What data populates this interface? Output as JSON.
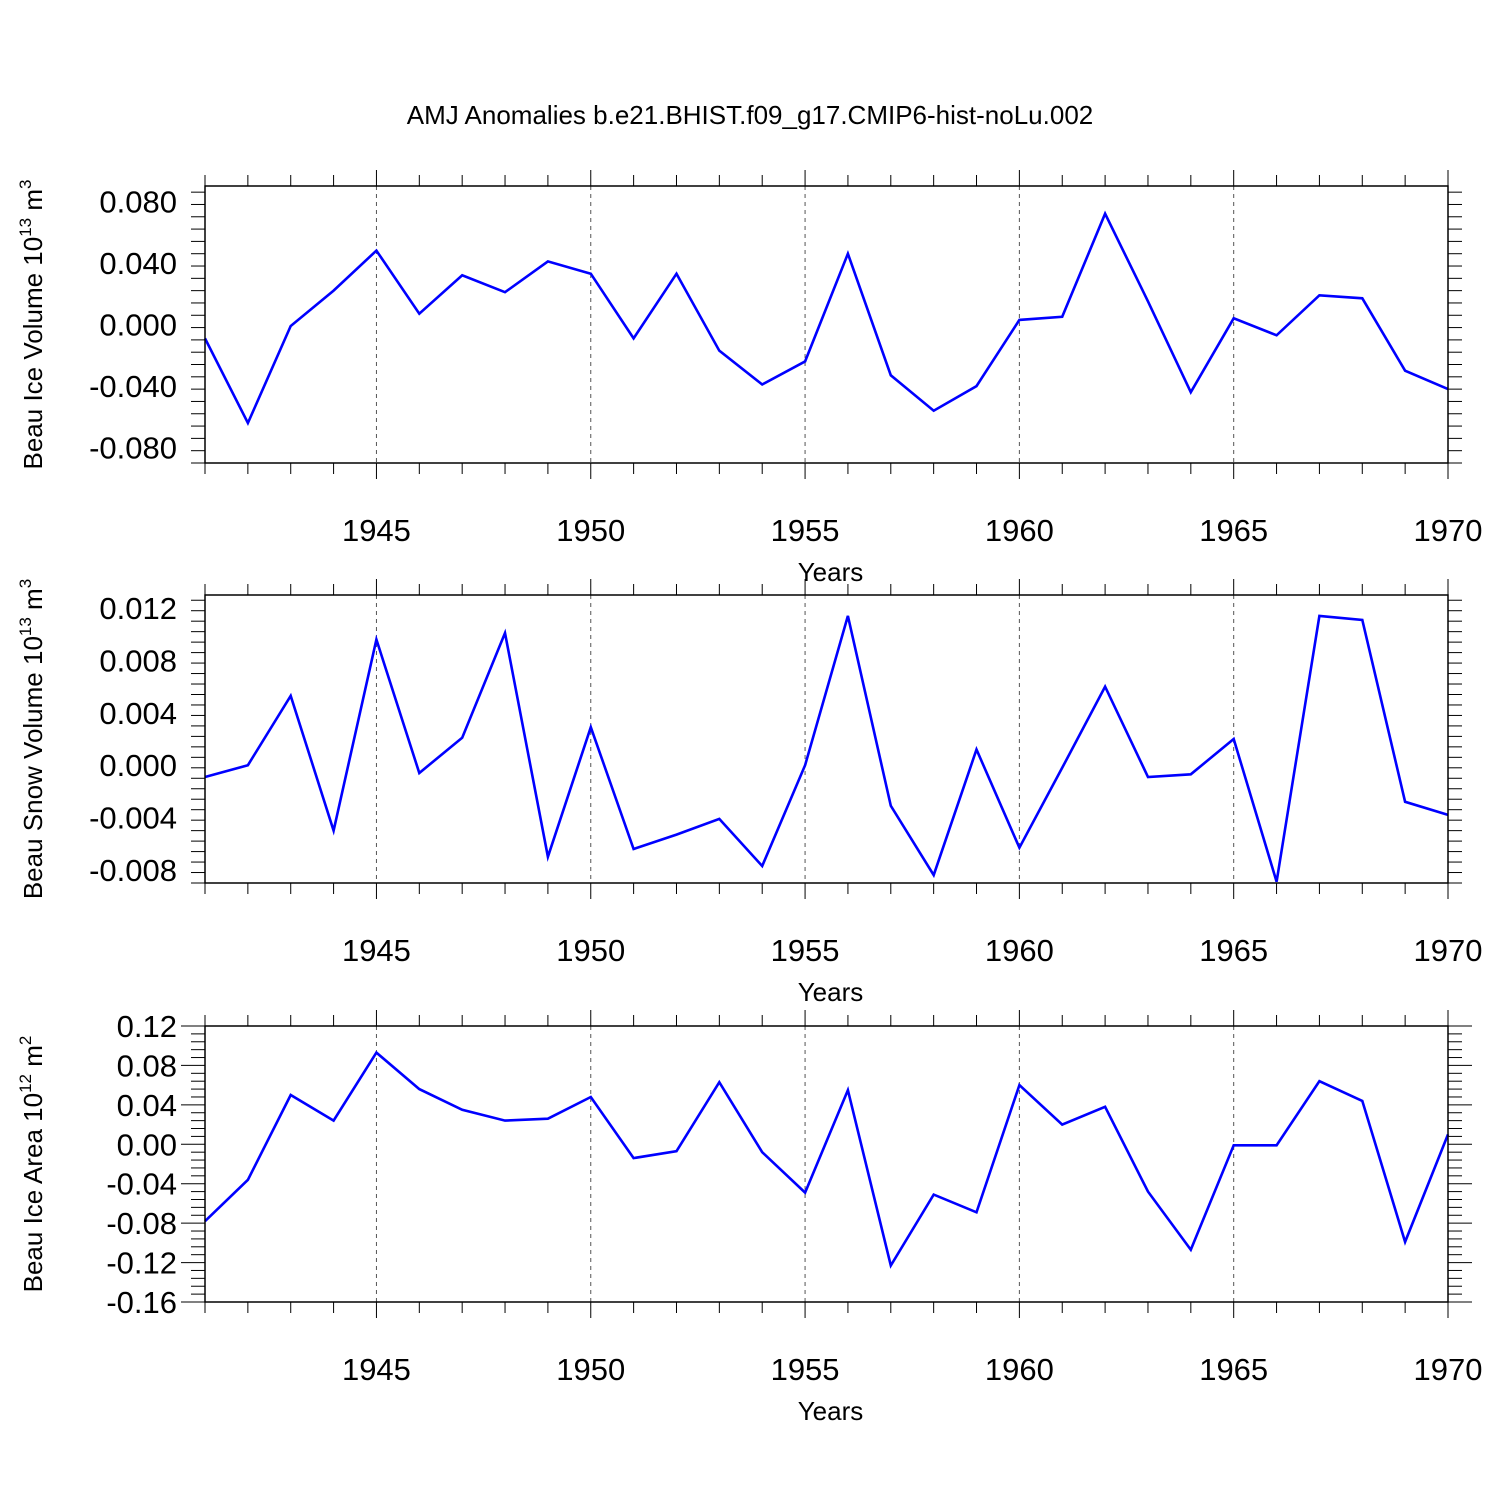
{
  "title": "AMJ Anomalies b.e21.BHIST.f09_g17.CMIP6-hist-noLu.002",
  "chart_data": [
    {
      "type": "line",
      "ylabel_main": "Beau Ice Volume 10",
      "ylabel_sup": "13",
      "ylabel_unit": " m",
      "ylabel_unit_sup": "3",
      "xlabel": "Years",
      "xlim": [
        1941,
        1970
      ],
      "ylim": [
        -0.09,
        0.09
      ],
      "yticks": [
        -0.08,
        -0.04,
        0.0,
        0.04,
        0.08
      ],
      "ytick_labels": [
        "-0.080",
        "-0.040",
        "0.000",
        "0.040",
        "0.080"
      ],
      "xticks": [
        1945,
        1950,
        1955,
        1960,
        1965,
        1970
      ],
      "xtick_labels": [
        "1945",
        "1950",
        "1955",
        "1960",
        "1965",
        "1970"
      ],
      "color": "#0000ff",
      "x": [
        1941,
        1942,
        1943,
        1944,
        1945,
        1946,
        1947,
        1948,
        1949,
        1950,
        1951,
        1952,
        1953,
        1954,
        1955,
        1956,
        1957,
        1958,
        1959,
        1960,
        1961,
        1962,
        1963,
        1964,
        1965,
        1966,
        1967,
        1968,
        1969,
        1970
      ],
      "values": [
        -0.009,
        -0.064,
        -0.001,
        0.022,
        0.048,
        0.007,
        0.032,
        0.021,
        0.041,
        0.033,
        -0.009,
        0.033,
        -0.017,
        -0.039,
        -0.024,
        0.046,
        -0.033,
        -0.056,
        -0.04,
        0.003,
        0.005,
        0.072,
        0.015,
        -0.044,
        0.004,
        -0.007,
        0.019,
        0.017,
        -0.03,
        -0.042
      ]
    },
    {
      "type": "line",
      "ylabel_main": "Beau Snow Volume 10",
      "ylabel_sup": "13",
      "ylabel_unit": " m",
      "ylabel_unit_sup": "3",
      "xlabel": "Years",
      "xlim": [
        1941,
        1970
      ],
      "ylim": [
        -0.009,
        0.013
      ],
      "yticks": [
        -0.008,
        -0.004,
        0.0,
        0.004,
        0.008,
        0.012
      ],
      "ytick_labels": [
        "-0.008",
        "-0.004",
        "0.000",
        "0.004",
        "0.008",
        "0.012"
      ],
      "xticks": [
        1945,
        1950,
        1955,
        1960,
        1965,
        1970
      ],
      "xtick_labels": [
        "1945",
        "1950",
        "1955",
        "1960",
        "1965",
        "1970"
      ],
      "color": "#0000ff",
      "x": [
        1941,
        1942,
        1943,
        1944,
        1945,
        1946,
        1947,
        1948,
        1949,
        1950,
        1951,
        1952,
        1953,
        1954,
        1955,
        1956,
        1957,
        1958,
        1959,
        1960,
        1961,
        1962,
        1963,
        1964,
        1965,
        1966,
        1967,
        1968,
        1969,
        1970
      ],
      "values": [
        -0.0009,
        0.0,
        0.0053,
        -0.005,
        0.0096,
        -0.0006,
        0.0021,
        0.0101,
        -0.007,
        0.0029,
        -0.0064,
        -0.0053,
        -0.0041,
        -0.0077,
        0.0,
        0.0114,
        -0.0031,
        -0.0084,
        0.0012,
        -0.0063,
        -0.0002,
        0.006,
        -0.0009,
        -0.0007,
        0.002,
        -0.0089,
        0.0114,
        0.0111,
        -0.0028,
        -0.0038
      ]
    },
    {
      "type": "line",
      "ylabel_main": "Beau Ice Area 10",
      "ylabel_sup": "12",
      "ylabel_unit": " m",
      "ylabel_unit_sup": "2",
      "xlabel": "Years",
      "xlim": [
        1941,
        1970
      ],
      "ylim": [
        -0.16,
        0.12
      ],
      "yticks": [
        -0.16,
        -0.12,
        -0.08,
        -0.04,
        0.0,
        0.04,
        0.08,
        0.12
      ],
      "ytick_labels": [
        "-0.16",
        "-0.12",
        "-0.08",
        "-0.04",
        "0.00",
        "0.04",
        "0.08",
        "0.12"
      ],
      "xticks": [
        1945,
        1950,
        1955,
        1960,
        1965,
        1970
      ],
      "xtick_labels": [
        "1945",
        "1950",
        "1955",
        "1960",
        "1965",
        "1970"
      ],
      "color": "#0000ff",
      "x": [
        1941,
        1942,
        1943,
        1944,
        1945,
        1946,
        1947,
        1948,
        1949,
        1950,
        1951,
        1952,
        1953,
        1954,
        1955,
        1956,
        1957,
        1958,
        1959,
        1960,
        1961,
        1962,
        1963,
        1964,
        1965,
        1966,
        1967,
        1968,
        1969,
        1970
      ],
      "values": [
        -0.078,
        -0.036,
        0.05,
        0.024,
        0.093,
        0.056,
        0.035,
        0.024,
        0.026,
        0.048,
        -0.014,
        -0.007,
        0.063,
        -0.008,
        -0.049,
        0.055,
        -0.123,
        -0.051,
        -0.069,
        0.06,
        0.02,
        0.038,
        -0.048,
        -0.107,
        -0.001,
        -0.001,
        0.064,
        0.044,
        -0.099,
        0.01
      ]
    }
  ]
}
